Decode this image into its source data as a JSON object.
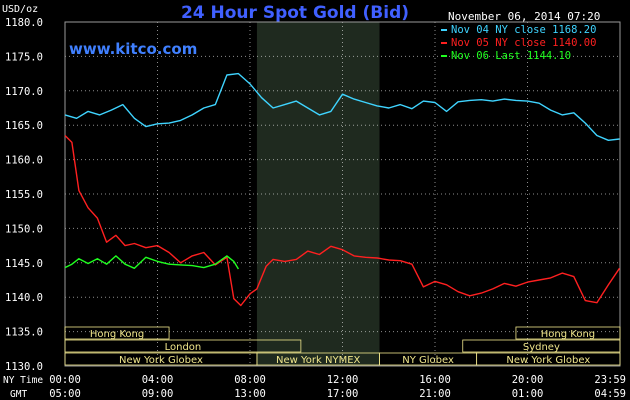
{
  "chart_data": {
    "type": "line",
    "title": "24 Hour Spot Gold (Bid)",
    "ylabel": "USD/oz",
    "timestamp": "November 06, 2014 07:20",
    "watermark": "www.kitco.com",
    "ylim": [
      1130,
      1180
    ],
    "yticks": [
      "1130.0",
      "1135.0",
      "1140.0",
      "1145.0",
      "1150.0",
      "1155.0",
      "1160.0",
      "1165.0",
      "1170.0",
      "1175.0",
      "1180.0"
    ],
    "xlim": [
      0,
      24
    ],
    "x_row_labels": {
      "ny": "NY Time",
      "gmt": "GMT"
    },
    "xticks_ny": [
      "00:00",
      "04:00",
      "08:00",
      "12:00",
      "16:00",
      "20:00",
      "23:59"
    ],
    "xticks_gmt": [
      "05:00",
      "09:00",
      "13:00",
      "17:00",
      "21:00",
      "01:00",
      "04:59"
    ],
    "highlight_region": [
      8.3,
      13.6
    ],
    "colors": {
      "nov04": "#3fd4ff",
      "nov05": "#ff2020",
      "nov06": "#20ff20",
      "band_text": "#f0e68c"
    },
    "sessions": [
      {
        "row": 1,
        "label": "Hong Kong",
        "start": 0,
        "end": 4.5
      },
      {
        "row": 1,
        "label": "Hong Kong",
        "start": 19.5,
        "end": 24
      },
      {
        "row": 2,
        "label": "London",
        "start": 0,
        "end": 10.2
      },
      {
        "row": 2,
        "label": "Sydney",
        "start": 17.2,
        "end": 24
      },
      {
        "row": 3,
        "label": "New York Globex",
        "start": 0,
        "end": 8.3
      },
      {
        "row": 3,
        "label": "New York NYMEX",
        "start": 8.3,
        "end": 13.6
      },
      {
        "row": 3,
        "label": "NY Globex",
        "start": 13.6,
        "end": 17.8
      },
      {
        "row": 3,
        "label": "New York Globex",
        "start": 17.8,
        "end": 24
      }
    ],
    "series": [
      {
        "name": "Nov 04 NY close 1168.20",
        "color": "#3fd4ff",
        "x": [
          0,
          0.5,
          1,
          1.5,
          2,
          2.5,
          3,
          3.5,
          4,
          4.5,
          5,
          5.5,
          6,
          6.5,
          7,
          7.5,
          8,
          8.5,
          9,
          9.5,
          10,
          10.5,
          11,
          11.5,
          12,
          12.5,
          13,
          13.5,
          14,
          14.5,
          15,
          15.5,
          16,
          16.5,
          17,
          17.5,
          18,
          18.5,
          19,
          19.5,
          20,
          20.5,
          21,
          21.5,
          22,
          22.5,
          23,
          23.5,
          23.98
        ],
        "values": [
          1166.5,
          1166,
          1167,
          1166.5,
          1167.2,
          1168,
          1166,
          1164.8,
          1165.2,
          1165.3,
          1165.7,
          1166.5,
          1167.5,
          1168,
          1172.3,
          1172.5,
          1171,
          1169,
          1167.5,
          1168,
          1168.5,
          1167.5,
          1166.5,
          1167,
          1169.5,
          1168.8,
          1168.3,
          1167.8,
          1167.5,
          1168,
          1167.4,
          1168.5,
          1168.3,
          1167,
          1168.4,
          1168.6,
          1168.7,
          1168.5,
          1168.8,
          1168.6,
          1168.5,
          1168.2,
          1167.2,
          1166.5,
          1166.8,
          1165.3,
          1163.5,
          1162.8,
          1163
        ]
      },
      {
        "name": "Nov 05 NY close 1140.00",
        "color": "#ff2020",
        "x": [
          0,
          0.3,
          0.6,
          1,
          1.4,
          1.8,
          2.2,
          2.6,
          3,
          3.5,
          4,
          4.5,
          5,
          5.5,
          6,
          6.5,
          7,
          7.3,
          7.6,
          8,
          8.3,
          8.7,
          9,
          9.5,
          10,
          10.5,
          11,
          11.5,
          12,
          12.5,
          13,
          13.5,
          14,
          14.5,
          15,
          15.5,
          16,
          16.5,
          17,
          17.5,
          18,
          18.5,
          19,
          19.5,
          20,
          20.5,
          21,
          21.5,
          22,
          22.5,
          23,
          23.5,
          23.98
        ],
        "values": [
          1163.5,
          1162.5,
          1155.5,
          1153,
          1151.5,
          1148,
          1149,
          1147.5,
          1147.8,
          1147.2,
          1147.5,
          1146.5,
          1145,
          1146,
          1146.5,
          1144.7,
          1145.8,
          1139.8,
          1138.8,
          1140.5,
          1141.2,
          1144.5,
          1145.5,
          1145.2,
          1145.5,
          1146.7,
          1146.2,
          1147.4,
          1146.9,
          1146,
          1145.8,
          1145.7,
          1145.4,
          1145.3,
          1144.8,
          1141.5,
          1142.3,
          1141.8,
          1140.8,
          1140.2,
          1140.6,
          1141.2,
          1142,
          1141.6,
          1142.2,
          1142.5,
          1142.8,
          1143.5,
          1143,
          1139.5,
          1139.2,
          1141.8,
          1144.2
        ]
      },
      {
        "name": "Nov 06 Last 1144.10",
        "color": "#20ff20",
        "x": [
          0,
          0.3,
          0.6,
          1,
          1.4,
          1.8,
          2.2,
          2.6,
          3,
          3.5,
          4,
          4.5,
          5,
          5.5,
          6,
          6.5,
          7,
          7.3,
          7.5
        ],
        "values": [
          1144.3,
          1144.8,
          1145.6,
          1144.9,
          1145.6,
          1144.8,
          1146,
          1144.8,
          1144.2,
          1145.8,
          1145.2,
          1144.8,
          1144.7,
          1144.6,
          1144.3,
          1144.8,
          1146,
          1145.2,
          1144.1
        ]
      }
    ]
  }
}
